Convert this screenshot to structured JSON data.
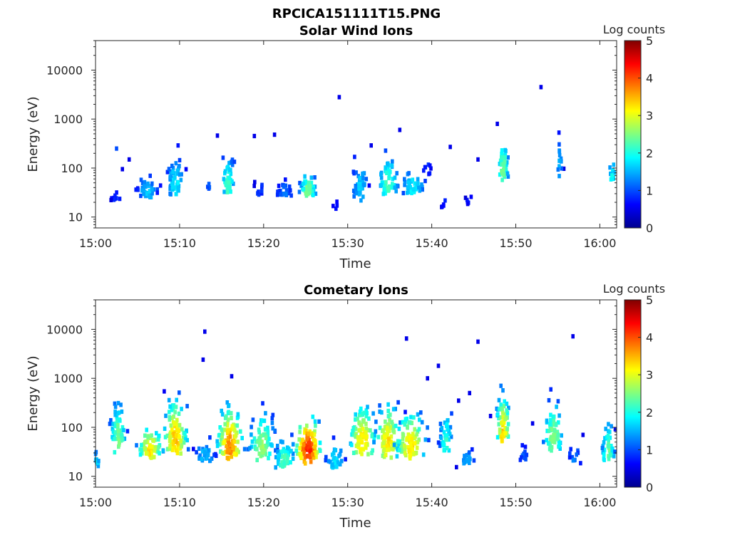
{
  "figure_title": "RPCICA151111T15.PNG",
  "colors": {
    "axis": "#262626",
    "colormap": [
      "#00008f",
      "#0000ff",
      "#0080ff",
      "#00ffff",
      "#80ff80",
      "#ffff00",
      "#ff8000",
      "#ff0000",
      "#800000"
    ]
  },
  "chart_data": [
    {
      "type": "heatmap",
      "title": "Solar Wind Ions",
      "xlabel": "Time",
      "ylabel": "Energy (eV)",
      "y_scale": "log",
      "xlim": [
        "15:00",
        "16:02"
      ],
      "ylim": [
        6,
        40000
      ],
      "x_ticks": [
        "15:00",
        "15:10",
        "15:20",
        "15:30",
        "15:40",
        "15:50",
        "16:00"
      ],
      "y_ticks": [
        "10",
        "100",
        "1000",
        "10000"
      ],
      "colorbar": {
        "label": "Log counts",
        "min": 0,
        "max": 5,
        "ticks": [
          "0",
          "1",
          "2",
          "3",
          "4",
          "5"
        ]
      },
      "clusters": [
        {
          "t": 2.5,
          "e": 25,
          "w": 1.0,
          "dec": 1.6,
          "peak": 0.5,
          "n": 10
        },
        {
          "t": 6.2,
          "e": 33,
          "w": 1.2,
          "dec": 1.6,
          "peak": 1.4,
          "n": 45
        },
        {
          "t": 9.5,
          "e": 45,
          "w": 1.0,
          "dec": 3.0,
          "peak": 1.6,
          "n": 55
        },
        {
          "t": 13.5,
          "e": 40,
          "w": 0.4,
          "dec": 1.3,
          "peak": 0.8,
          "n": 4
        },
        {
          "t": 15.8,
          "e": 45,
          "w": 0.8,
          "dec": 2.5,
          "peak": 2.0,
          "n": 45
        },
        {
          "t": 19.5,
          "e": 32,
          "w": 0.6,
          "dec": 1.8,
          "peak": 0.7,
          "n": 10
        },
        {
          "t": 22.5,
          "e": 30,
          "w": 1.0,
          "dec": 1.6,
          "peak": 0.9,
          "n": 25
        },
        {
          "t": 25.3,
          "e": 35,
          "w": 1.0,
          "dec": 1.6,
          "peak": 2.3,
          "n": 55
        },
        {
          "t": 28.5,
          "e": 15,
          "w": 0.5,
          "dec": 1.3,
          "peak": 0.5,
          "n": 4
        },
        {
          "t": 31.5,
          "e": 40,
          "w": 1.0,
          "dec": 2.8,
          "peak": 1.4,
          "n": 45
        },
        {
          "t": 34.8,
          "e": 45,
          "w": 1.2,
          "dec": 2.8,
          "peak": 2.0,
          "n": 55
        },
        {
          "t": 37.8,
          "e": 40,
          "w": 1.4,
          "dec": 1.8,
          "peak": 1.6,
          "n": 40
        },
        {
          "t": 39.5,
          "e": 80,
          "w": 0.6,
          "dec": 1.8,
          "peak": 0.6,
          "n": 8
        },
        {
          "t": 41.5,
          "e": 18,
          "w": 0.4,
          "dec": 1.3,
          "peak": 0.5,
          "n": 5
        },
        {
          "t": 44.5,
          "e": 20,
          "w": 0.6,
          "dec": 1.3,
          "peak": 0.5,
          "n": 6
        },
        {
          "t": 48.5,
          "e": 90,
          "w": 0.7,
          "dec": 3.5,
          "peak": 2.2,
          "n": 45
        },
        {
          "t": 55.2,
          "e": 100,
          "w": 0.4,
          "dec": 3.0,
          "peak": 1.3,
          "n": 15
        },
        {
          "t": 61.5,
          "e": 60,
          "w": 0.5,
          "dec": 2.0,
          "peak": 1.7,
          "n": 15
        }
      ],
      "isolated_points": [
        [
          2.5,
          250,
          1.0
        ],
        [
          3.2,
          95,
          0.5
        ],
        [
          4.0,
          150,
          0.5
        ],
        [
          14.5,
          460,
          0.5
        ],
        [
          18.9,
          450,
          0.5
        ],
        [
          21.3,
          480,
          0.5
        ],
        [
          29.0,
          2800,
          0.5
        ],
        [
          32.8,
          290,
          0.5
        ],
        [
          36.2,
          600,
          0.5
        ],
        [
          42.2,
          270,
          0.5
        ],
        [
          45.5,
          150,
          0.5
        ],
        [
          53.0,
          4500,
          0.5
        ],
        [
          47.8,
          800,
          0.5
        ]
      ]
    },
    {
      "type": "heatmap",
      "title": "Cometary Ions",
      "xlabel": "Time",
      "ylabel": "Energy (eV)",
      "y_scale": "log",
      "xlim": [
        "15:00",
        "16:02"
      ],
      "ylim": [
        6,
        40000
      ],
      "x_ticks": [
        "15:00",
        "15:10",
        "15:20",
        "15:30",
        "15:40",
        "15:50",
        "16:00"
      ],
      "y_ticks": [
        "10",
        "100",
        "1000",
        "10000"
      ],
      "colorbar": {
        "label": "Log counts",
        "min": 0,
        "max": 5,
        "ticks": [
          "0",
          "1",
          "2",
          "3",
          "4",
          "5"
        ]
      },
      "clusters": [
        {
          "t": 0.2,
          "e": 20,
          "w": 0.4,
          "dec": 1.6,
          "peak": 1.4,
          "n": 12
        },
        {
          "t": 2.7,
          "e": 60,
          "w": 1.0,
          "dec": 4.0,
          "peak": 2.2,
          "n": 55
        },
        {
          "t": 6.5,
          "e": 35,
          "w": 1.5,
          "dec": 2.0,
          "peak": 3.0,
          "n": 70
        },
        {
          "t": 9.5,
          "e": 55,
          "w": 1.4,
          "dec": 4.5,
          "peak": 3.2,
          "n": 95
        },
        {
          "t": 13.0,
          "e": 25,
          "w": 1.2,
          "dec": 1.8,
          "peak": 1.3,
          "n": 30
        },
        {
          "t": 16.0,
          "e": 40,
          "w": 1.5,
          "dec": 4.5,
          "peak": 3.5,
          "n": 105
        },
        {
          "t": 19.8,
          "e": 40,
          "w": 1.5,
          "dec": 3.5,
          "peak": 2.4,
          "n": 80
        },
        {
          "t": 22.5,
          "e": 20,
          "w": 1.3,
          "dec": 2.2,
          "peak": 2.0,
          "n": 50
        },
        {
          "t": 25.3,
          "e": 35,
          "w": 1.5,
          "dec": 3.0,
          "peak": 4.0,
          "n": 105
        },
        {
          "t": 28.5,
          "e": 20,
          "w": 1.2,
          "dec": 2.0,
          "peak": 1.5,
          "n": 30
        },
        {
          "t": 31.8,
          "e": 50,
          "w": 1.6,
          "dec": 4.0,
          "peak": 3.0,
          "n": 95
        },
        {
          "t": 34.8,
          "e": 50,
          "w": 1.5,
          "dec": 4.0,
          "peak": 3.0,
          "n": 95
        },
        {
          "t": 37.5,
          "e": 40,
          "w": 1.8,
          "dec": 3.5,
          "peak": 3.0,
          "n": 90
        },
        {
          "t": 41.7,
          "e": 50,
          "w": 0.8,
          "dec": 4.0,
          "peak": 1.8,
          "n": 40
        },
        {
          "t": 44.2,
          "e": 20,
          "w": 1.0,
          "dec": 1.6,
          "peak": 1.2,
          "n": 18
        },
        {
          "t": 48.5,
          "e": 80,
          "w": 0.8,
          "dec": 4.0,
          "peak": 3.1,
          "n": 65
        },
        {
          "t": 51.0,
          "e": 22,
          "w": 0.8,
          "dec": 1.8,
          "peak": 0.8,
          "n": 10
        },
        {
          "t": 54.5,
          "e": 60,
          "w": 1.2,
          "dec": 4.0,
          "peak": 2.3,
          "n": 60
        },
        {
          "t": 57.0,
          "e": 22,
          "w": 0.8,
          "dec": 1.5,
          "peak": 1.0,
          "n": 12
        },
        {
          "t": 61.0,
          "e": 30,
          "w": 0.8,
          "dec": 2.8,
          "peak": 2.2,
          "n": 40
        }
      ],
      "isolated_points": [
        [
          13.0,
          9000,
          0.5
        ],
        [
          12.8,
          2400,
          0.5
        ],
        [
          37.0,
          6500,
          0.5
        ],
        [
          45.5,
          5600,
          0.5
        ],
        [
          56.8,
          7200,
          0.5
        ],
        [
          40.8,
          1800,
          0.5
        ],
        [
          16.2,
          1100,
          0.5
        ],
        [
          44.5,
          500,
          0.5
        ],
        [
          39.5,
          1000,
          0.5
        ],
        [
          43.2,
          350,
          0.5
        ],
        [
          47.0,
          170,
          0.5
        ],
        [
          52.0,
          120,
          0.5
        ],
        [
          58.0,
          70,
          0.5
        ]
      ]
    }
  ]
}
